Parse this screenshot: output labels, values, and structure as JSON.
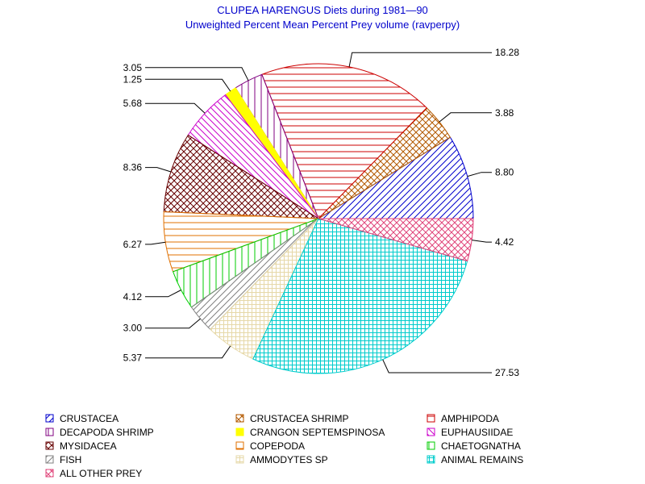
{
  "chart_data": {
    "type": "pie",
    "title": "CLUPEA HARENGUS Diets during 1981—90",
    "subtitle": "Unweighted Percent Mean Percent Prey  volume (ravperpy)",
    "slices": [
      {
        "name": "CRUSTACEA",
        "value": 8.8,
        "label": "8.80",
        "color": "#0000cc",
        "pattern": "diag-up"
      },
      {
        "name": "CRUSTACEA SHRIMP",
        "value": 3.88,
        "label": "3.88",
        "color": "#b35900",
        "pattern": "diag-cross"
      },
      {
        "name": "AMPHIPODA",
        "value": 18.28,
        "label": "18.28",
        "color": "#cc0000",
        "pattern": "horizontal"
      },
      {
        "name": "DECAPODA SHRIMP",
        "value": 3.05,
        "label": "3.05",
        "color": "#800080",
        "pattern": "vertical"
      },
      {
        "name": "CRANGON SEPTEMSPINOSA",
        "value": 1.25,
        "label": "1.25",
        "color": "#ffff00",
        "pattern": "solid"
      },
      {
        "name": "EUPHAUSIIDAE",
        "value": 5.68,
        "label": "5.68",
        "color": "#cc00cc",
        "pattern": "diag-down"
      },
      {
        "name": "MYSIDACEA",
        "value": 8.36,
        "label": "8.36",
        "color": "#660000",
        "pattern": "diag-cross"
      },
      {
        "name": "COPEPODA",
        "value": 6.27,
        "label": "6.27",
        "color": "#e07000",
        "pattern": "horizontal"
      },
      {
        "name": "CHAETOGNATHA",
        "value": 4.12,
        "label": "4.12",
        "color": "#00cc00",
        "pattern": "vertical"
      },
      {
        "name": "FISH",
        "value": 3.0,
        "label": "3.00",
        "color": "#808080",
        "pattern": "diag-up"
      },
      {
        "name": "AMMODYTES SP",
        "value": 5.37,
        "label": "5.37",
        "color": "#e6d8a8",
        "pattern": "grid"
      },
      {
        "name": "ANIMAL REMAINS",
        "value": 27.53,
        "label": "27.53",
        "color": "#00cccc",
        "pattern": "grid"
      },
      {
        "name": "ALL OTHER PREY",
        "value": 4.42,
        "label": "4.42",
        "color": "#e0447a",
        "pattern": "diag-cross"
      }
    ],
    "legend_order": [
      "CRUSTACEA",
      "CRUSTACEA SHRIMP",
      "AMPHIPODA",
      "DECAPODA SHRIMP",
      "CRANGON SEPTEMSPINOSA",
      "EUPHAUSIIDAE",
      "MYSIDACEA",
      "COPEPODA",
      "CHAETOGNATHA",
      "FISH",
      "AMMODYTES SP",
      "ANIMAL REMAINS",
      "ALL OTHER PREY"
    ],
    "legend_placement": "bottom",
    "start_direction": "east",
    "direction": "counterclockwise"
  }
}
